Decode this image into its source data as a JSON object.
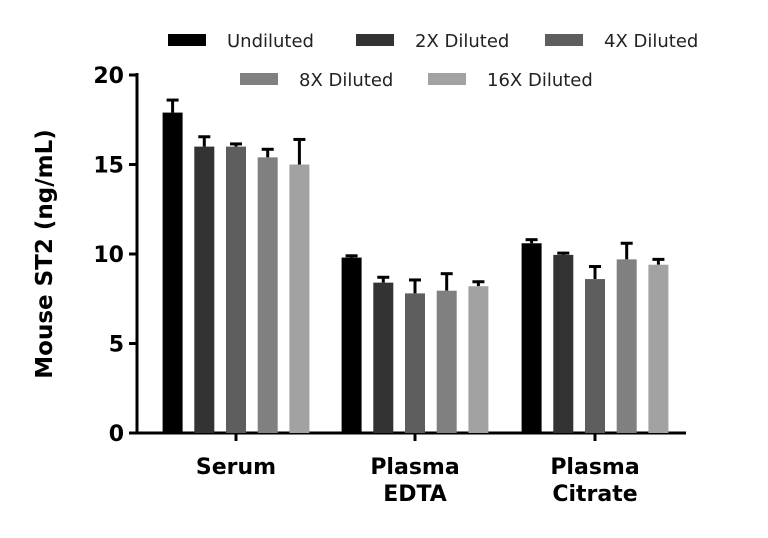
{
  "chart_data": {
    "type": "bar",
    "title": "",
    "xlabel": "",
    "ylabel": "Mouse ST2 (ng/mL)",
    "ylim": [
      0,
      20
    ],
    "yticks": [
      "0",
      "5",
      "10",
      "15",
      "20"
    ],
    "categories": [
      [
        "Serum"
      ],
      [
        "Plasma",
        "EDTA"
      ],
      [
        "Plasma",
        "Citrate"
      ]
    ],
    "legend_placement": "top",
    "series": [
      {
        "name": "Undiluted",
        "color": "#000000",
        "values": [
          17.9,
          9.8,
          10.6
        ],
        "errors": [
          0.7,
          0.1,
          0.2
        ]
      },
      {
        "name": "2X Diluted",
        "color": "#333333",
        "values": [
          16.0,
          8.4,
          9.95
        ],
        "errors": [
          0.55,
          0.3,
          0.1
        ]
      },
      {
        "name": "4X Diluted",
        "color": "#5e5e5e",
        "values": [
          16.0,
          7.8,
          8.6
        ],
        "errors": [
          0.15,
          0.75,
          0.7
        ]
      },
      {
        "name": "8X Diluted",
        "color": "#808080",
        "values": [
          15.4,
          7.95,
          9.7
        ],
        "errors": [
          0.45,
          0.95,
          0.9
        ]
      },
      {
        "name": "16X Diluted",
        "color": "#a2a2a2",
        "values": [
          15.0,
          8.2,
          9.4
        ],
        "errors": [
          1.4,
          0.25,
          0.3
        ]
      }
    ]
  }
}
